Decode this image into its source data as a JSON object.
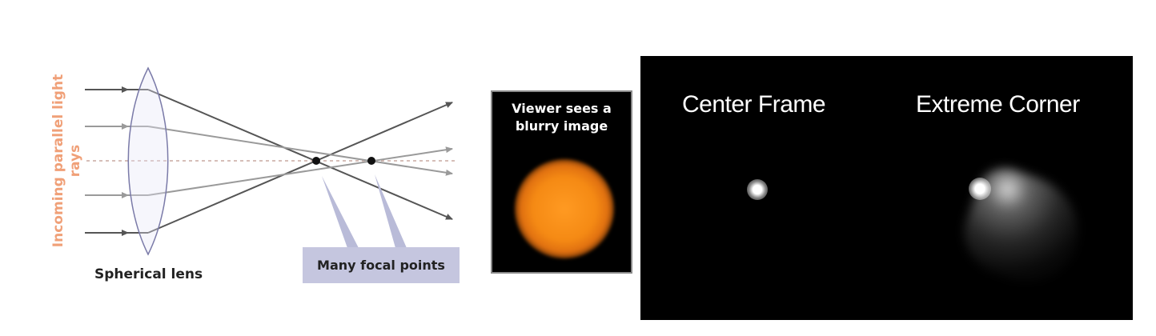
{
  "lens_diagram": {
    "rays_label": "Incoming parallel light rays",
    "lens_label": "Spherical lens",
    "focal_points_label": "Many focal points"
  },
  "blurry_panel": {
    "caption_line1": "Viewer sees a",
    "caption_line2": "blurry image"
  },
  "star_panel": {
    "left_title": "Center Frame",
    "right_title": "Extreme Corner"
  },
  "colors": {
    "rays_label": "#f0a078",
    "focal_box": "#c5c6df",
    "lens_outline": "#7a7aa8",
    "blur_disc": "#f58a14"
  }
}
